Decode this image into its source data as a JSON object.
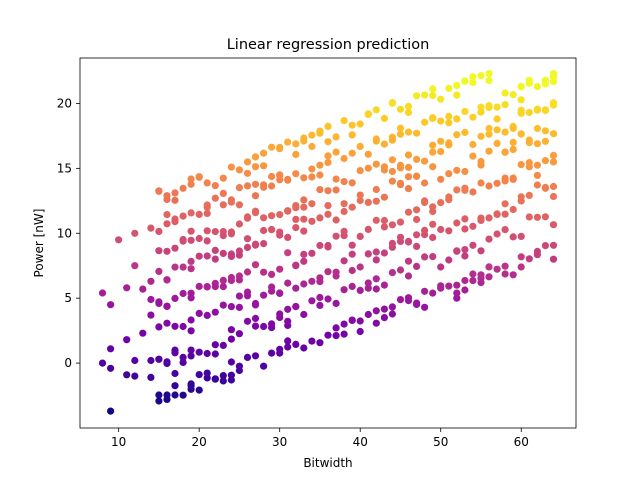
{
  "chart_data": {
    "type": "scatter",
    "title": "Linear regression prediction",
    "xlabel": "Bitwidth",
    "ylabel": "Power [nW]",
    "xlim": [
      5.2,
      66.8
    ],
    "ylim": [
      -5.0,
      23.5
    ],
    "xticks": [
      10,
      20,
      30,
      40,
      50,
      60
    ],
    "yticks": [
      0,
      5,
      10,
      15,
      20
    ],
    "grid": false,
    "legend": "none",
    "colormap": "plasma",
    "color_stops": [
      "#0d0887",
      "#46039f",
      "#7201a8",
      "#9c179e",
      "#bd3786",
      "#d8576b",
      "#ed7953",
      "#fb9f3a",
      "#fdca26",
      "#f0f921"
    ],
    "sample_points": [
      {
        "x": 8,
        "y": 5.4
      },
      {
        "x": 8,
        "y": 0.0
      },
      {
        "x": 9,
        "y": 4.5
      },
      {
        "x": 9,
        "y": 1.1
      },
      {
        "x": 9,
        "y": -0.4
      },
      {
        "x": 9,
        "y": -3.7
      },
      {
        "x": 10,
        "y": 9.5
      },
      {
        "x": 11,
        "y": 5.8
      },
      {
        "x": 11,
        "y": 1.8
      },
      {
        "x": 11,
        "y": -0.9
      },
      {
        "x": 12,
        "y": 10.0
      },
      {
        "x": 12,
        "y": 7.5
      },
      {
        "x": 12,
        "y": 0.2
      },
      {
        "x": 12,
        "y": -1.0
      },
      {
        "x": 13,
        "y": 5.7
      },
      {
        "x": 13,
        "y": 2.3
      },
      {
        "x": 14,
        "y": 10.4
      },
      {
        "x": 14,
        "y": 6.3
      },
      {
        "x": 14,
        "y": 4.9
      },
      {
        "x": 14,
        "y": 3.7
      },
      {
        "x": 14,
        "y": 0.2
      },
      {
        "x": 14,
        "y": -1.1
      },
      {
        "x": 16,
        "y": -2.8
      },
      {
        "x": 17,
        "y": 11.1
      },
      {
        "x": 17,
        "y": -0.8
      },
      {
        "x": 19,
        "y": -1.6
      },
      {
        "x": 21,
        "y": 12.0
      },
      {
        "x": 22,
        "y": 0.7
      },
      {
        "x": 24,
        "y": 12.4
      },
      {
        "x": 24,
        "y": -1.3
      },
      {
        "x": 30,
        "y": 14.5
      },
      {
        "x": 31,
        "y": 2.9
      },
      {
        "x": 38,
        "y": 3.0
      },
      {
        "x": 44,
        "y": 17.4
      },
      {
        "x": 48,
        "y": 4.3
      },
      {
        "x": 51,
        "y": 19.0
      },
      {
        "x": 52,
        "y": 5.0
      },
      {
        "x": 55,
        "y": 6.2
      },
      {
        "x": 60,
        "y": 21.3
      },
      {
        "x": 60,
        "y": 7.4
      },
      {
        "x": 62,
        "y": 8.6
      },
      {
        "x": 64,
        "y": 22.3
      },
      {
        "x": 64,
        "y": 8.0
      }
    ],
    "dense_bands": {
      "bitwidth_range": [
        15,
        64
      ],
      "bitwidth_step": 1,
      "band_intercepts": [
        -6.1,
        -3.4,
        -1.2,
        0.8,
        3.2,
        5.1,
        7.1,
        9.3
      ],
      "band_slope": 0.23
    }
  }
}
